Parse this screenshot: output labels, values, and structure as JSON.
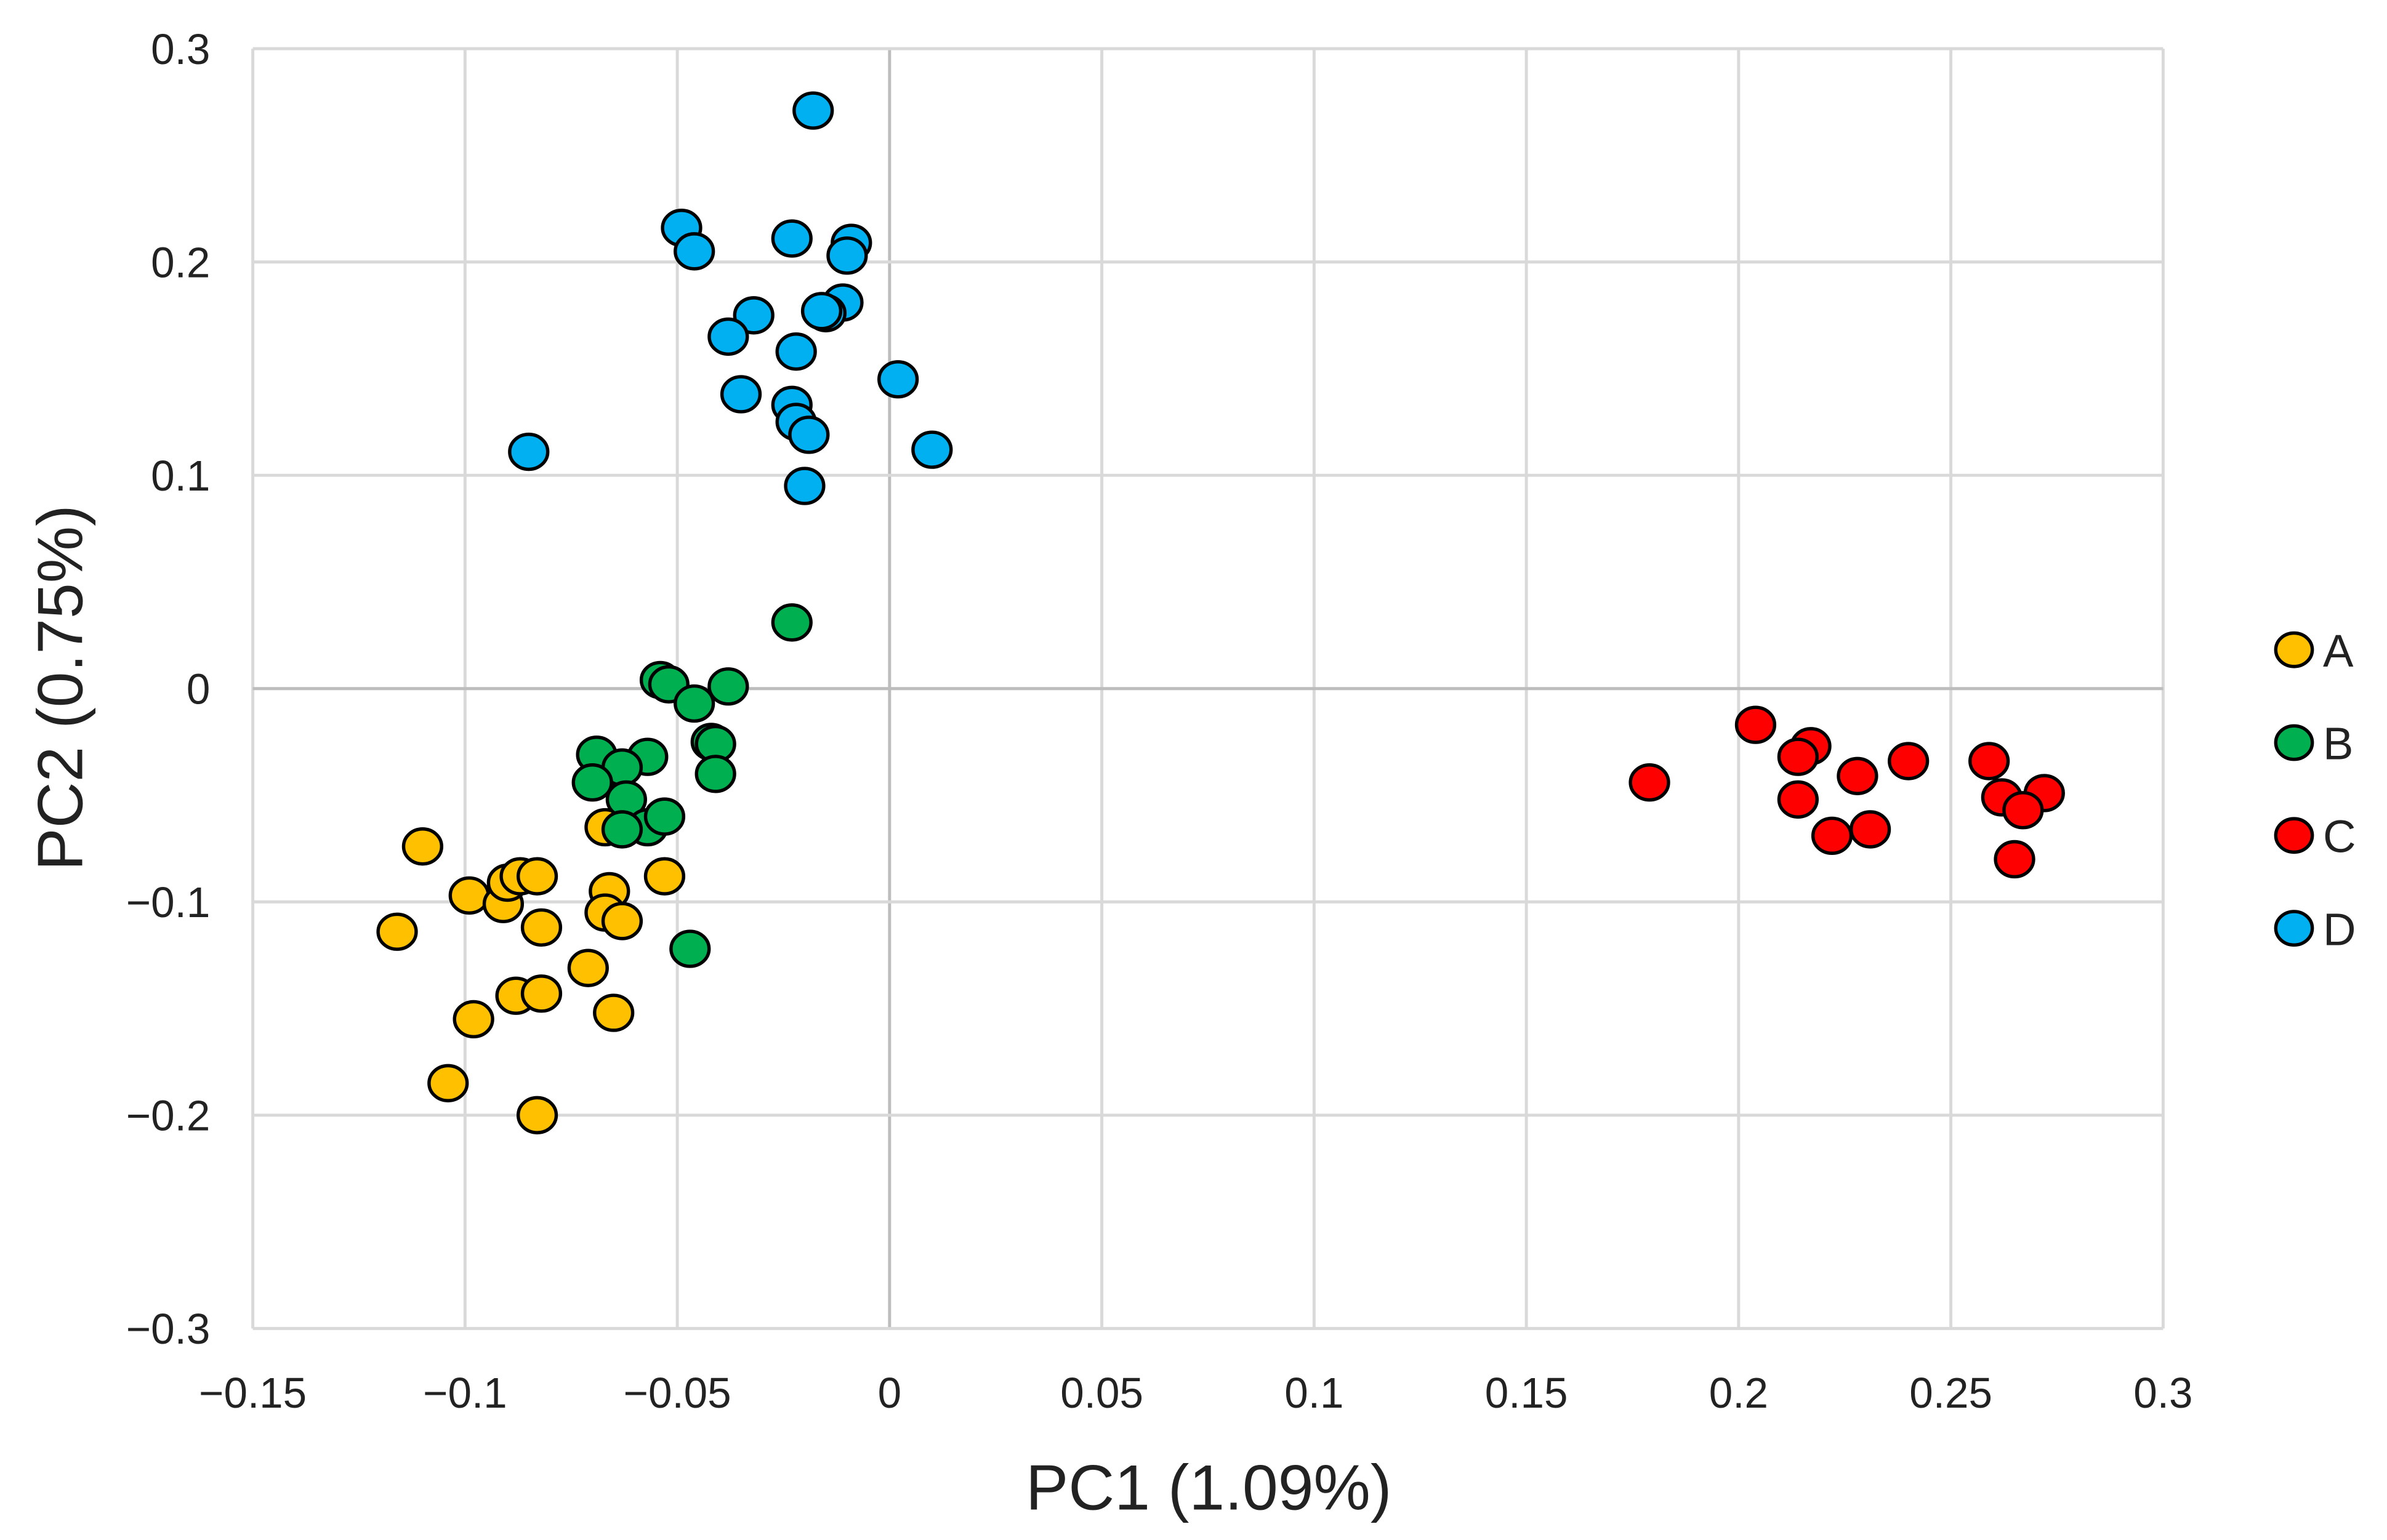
{
  "chart_data": {
    "type": "scatter",
    "title": "",
    "xlabel": "PC1 (1.09%)",
    "ylabel": "PC2 (0.75%)",
    "xlim": [
      -0.15,
      0.3
    ],
    "ylim": [
      -0.3,
      0.3
    ],
    "xticks": [
      -0.15,
      -0.1,
      -0.05,
      0,
      0.05,
      0.1,
      0.15,
      0.2,
      0.25,
      0.3
    ],
    "xtick_labels": [
      "−0.15",
      "−0.1",
      "−0.05",
      "0",
      "0.05",
      "0.1",
      "0.15",
      "0.2",
      "0.25",
      "0.3"
    ],
    "yticks": [
      0.3,
      0.2,
      0.1,
      0,
      -0.1,
      -0.2,
      -0.3
    ],
    "ytick_labels": [
      "0.3",
      "0.2",
      "0.1",
      "0",
      "−0.1",
      "−0.2",
      "−0.3"
    ],
    "grid": true,
    "legend_position": "right",
    "series": [
      {
        "name": "A",
        "color": "#FFC000",
        "points": [
          [
            -0.11,
            -0.074
          ],
          [
            -0.067,
            -0.065
          ],
          [
            -0.099,
            -0.097
          ],
          [
            -0.091,
            -0.101
          ],
          [
            -0.09,
            -0.091
          ],
          [
            -0.087,
            -0.088
          ],
          [
            -0.083,
            -0.088
          ],
          [
            -0.053,
            -0.088
          ],
          [
            -0.066,
            -0.095
          ],
          [
            -0.067,
            -0.105
          ],
          [
            -0.063,
            -0.109
          ],
          [
            -0.082,
            -0.112
          ],
          [
            -0.116,
            -0.114
          ],
          [
            -0.071,
            -0.131
          ],
          [
            -0.088,
            -0.144
          ],
          [
            -0.082,
            -0.143
          ],
          [
            -0.065,
            -0.152
          ],
          [
            -0.098,
            -0.155
          ],
          [
            -0.104,
            -0.185
          ],
          [
            -0.083,
            -0.2
          ]
        ]
      },
      {
        "name": "B",
        "color": "#00B050",
        "points": [
          [
            -0.023,
            0.031
          ],
          [
            -0.054,
            0.004
          ],
          [
            -0.052,
            0.002
          ],
          [
            -0.038,
            0.001
          ],
          [
            -0.046,
            -0.007
          ],
          [
            -0.042,
            -0.025
          ],
          [
            -0.041,
            -0.026
          ],
          [
            -0.041,
            -0.04
          ],
          [
            -0.069,
            -0.031
          ],
          [
            -0.057,
            -0.032
          ],
          [
            -0.063,
            -0.037
          ],
          [
            -0.07,
            -0.044
          ],
          [
            -0.062,
            -0.052
          ],
          [
            -0.057,
            -0.065
          ],
          [
            -0.053,
            -0.06
          ],
          [
            -0.063,
            -0.066
          ],
          [
            -0.047,
            -0.122
          ]
        ]
      },
      {
        "name": "C",
        "color": "#FF0000",
        "points": [
          [
            0.179,
            -0.044
          ],
          [
            0.204,
            -0.017
          ],
          [
            0.217,
            -0.027
          ],
          [
            0.214,
            -0.032
          ],
          [
            0.214,
            -0.052
          ],
          [
            0.228,
            -0.041
          ],
          [
            0.24,
            -0.034
          ],
          [
            0.222,
            -0.069
          ],
          [
            0.231,
            -0.066
          ],
          [
            0.259,
            -0.034
          ],
          [
            0.262,
            -0.051
          ],
          [
            0.272,
            -0.049
          ],
          [
            0.267,
            -0.057
          ],
          [
            0.265,
            -0.08
          ]
        ]
      },
      {
        "name": "D",
        "color": "#00B0F0",
        "points": [
          [
            -0.018,
            0.271
          ],
          [
            -0.049,
            0.216
          ],
          [
            -0.046,
            0.205
          ],
          [
            -0.023,
            0.211
          ],
          [
            -0.009,
            0.209
          ],
          [
            -0.01,
            0.203
          ],
          [
            -0.011,
            0.181
          ],
          [
            -0.015,
            0.176
          ],
          [
            -0.016,
            0.177
          ],
          [
            -0.032,
            0.175
          ],
          [
            -0.038,
            0.165
          ],
          [
            -0.022,
            0.158
          ],
          [
            0.002,
            0.145
          ],
          [
            -0.035,
            0.138
          ],
          [
            -0.023,
            0.133
          ],
          [
            -0.022,
            0.125
          ],
          [
            -0.019,
            0.119
          ],
          [
            -0.02,
            0.095
          ],
          [
            0.01,
            0.112
          ],
          [
            -0.085,
            0.111
          ]
        ]
      }
    ]
  }
}
